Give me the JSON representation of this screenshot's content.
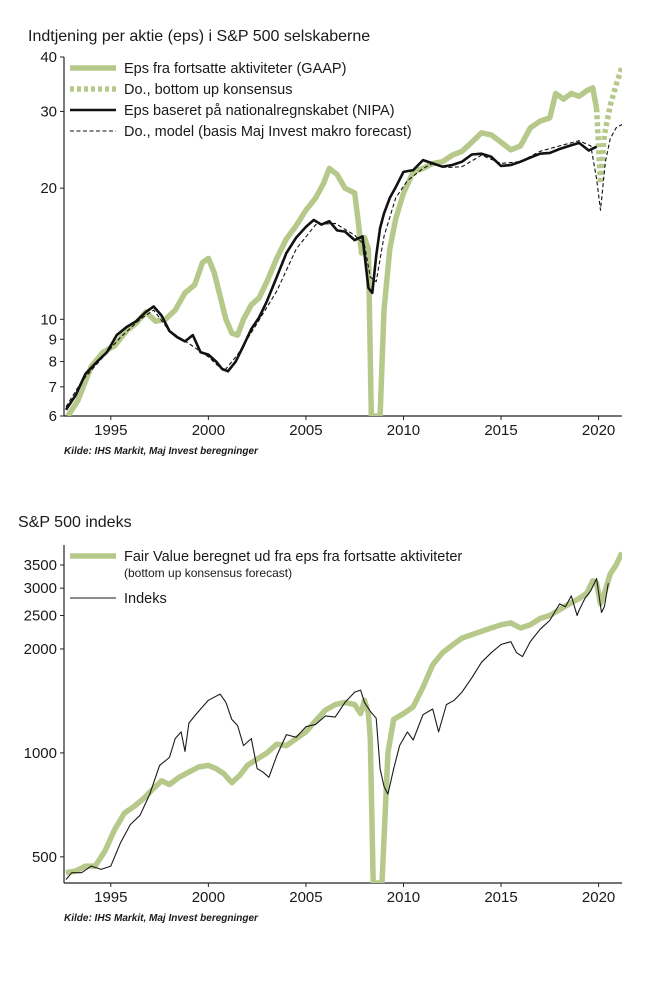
{
  "colors": {
    "gaap": "#b7c98a",
    "nipa": "#111111",
    "index": "#1a1a1a",
    "axis": "#222222"
  },
  "chart_data": [
    {
      "type": "line",
      "title": "Indtjening per aktie (eps) i S&P 500 selskaberne",
      "yscale": "log",
      "ylim": [
        6,
        40
      ],
      "xlim": [
        1992.6,
        2021.2
      ],
      "y_ticks": [
        6,
        7,
        8,
        9,
        10,
        20,
        30,
        40
      ],
      "y_tick_labels": [
        "6",
        "7",
        "8",
        "9",
        "10",
        "20",
        "30",
        "40"
      ],
      "x_ticks": [
        1995,
        2000,
        2005,
        2010,
        2015,
        2020
      ],
      "x_tick_labels": [
        "1995",
        "2000",
        "2005",
        "2010",
        "2015",
        "2020"
      ],
      "legend": "top-left",
      "source": "Kilde: IHS Markit, Maj Invest beregninger",
      "series": [
        {
          "name": "Eps fra fortsatte aktiviteter (GAAP)",
          "style": "thick-green",
          "x": [
            1992.8,
            1993.3,
            1994.0,
            1994.6,
            1995.2,
            1995.8,
            1996.3,
            1996.8,
            1997.3,
            1997.8,
            1998.3,
            1998.8,
            1999.3,
            1999.7,
            2000.0,
            2000.3,
            2000.6,
            2000.9,
            2001.2,
            2001.5,
            2001.8,
            2002.2,
            2002.6,
            2003.0,
            2003.5,
            2004.0,
            2004.5,
            2005.0,
            2005.5,
            2005.9,
            2006.2,
            2006.6,
            2007.0,
            2007.5,
            2007.7,
            2007.85,
            2008.0,
            2008.2,
            2008.35,
            2008.5,
            2008.6,
            2008.8,
            2009.0,
            2009.3,
            2009.6,
            2010.0,
            2010.5,
            2011.0,
            2011.5,
            2012.0,
            2012.5,
            2013.0,
            2013.5,
            2014.0,
            2014.5,
            2015.0,
            2015.5,
            2016.0,
            2016.5,
            2017.0,
            2017.5,
            2017.8,
            2018.2,
            2018.6,
            2019.0,
            2019.4,
            2019.7,
            2019.9
          ],
          "y": [
            6.0,
            6.5,
            7.8,
            8.4,
            8.7,
            9.4,
            9.8,
            10.4,
            9.9,
            10.0,
            10.5,
            11.5,
            12.0,
            13.5,
            13.8,
            12.8,
            11.3,
            10.0,
            9.3,
            9.2,
            10.0,
            10.8,
            11.2,
            12.2,
            13.8,
            15.3,
            16.4,
            17.8,
            19.0,
            20.5,
            22.2,
            21.5,
            20.0,
            19.5,
            16.5,
            14.2,
            15.4,
            14.5,
            6.0,
            6.0,
            6.0,
            6.0,
            10.5,
            14.5,
            17.0,
            19.5,
            21.8,
            22.2,
            22.8,
            23.0,
            23.8,
            24.3,
            25.5,
            26.8,
            26.5,
            25.5,
            24.5,
            25.0,
            27.5,
            28.5,
            29.0,
            33.0,
            32.0,
            33.0,
            32.5,
            33.5,
            34.0,
            30.5
          ]
        },
        {
          "name": "Do., bottom up konsensus",
          "style": "dotted-green",
          "x": [
            2019.9,
            2020.1,
            2020.3,
            2020.6,
            2020.9,
            2021.2
          ],
          "y": [
            30.5,
            20.5,
            26.5,
            31.0,
            34.5,
            38.0
          ]
        },
        {
          "name": "Eps baseret på nationalregnskabet (NIPA)",
          "style": "thick-black",
          "x": [
            1992.7,
            1993.2,
            1993.7,
            1994.3,
            1994.8,
            1995.3,
            1995.8,
            1996.3,
            1996.8,
            1997.2,
            1997.6,
            1998.0,
            1998.4,
            1998.8,
            1999.2,
            1999.6,
            2000.0,
            2000.4,
            2000.7,
            2001.0,
            2001.4,
            2001.8,
            2002.2,
            2002.6,
            2003.0,
            2003.5,
            2004.0,
            2004.5,
            2005.0,
            2005.4,
            2005.8,
            2006.2,
            2006.6,
            2007.0,
            2007.5,
            2007.9,
            2008.2,
            2008.4,
            2008.6,
            2008.8,
            2009.0,
            2009.3,
            2009.6,
            2010.0,
            2010.5,
            2011.0,
            2011.5,
            2012.0,
            2012.5,
            2013.0,
            2013.5,
            2014.0,
            2014.5,
            2015.0,
            2015.5,
            2016.0,
            2016.5,
            2017.0,
            2017.5,
            2018.0,
            2018.5,
            2019.0,
            2019.5,
            2019.9
          ],
          "y": [
            6.2,
            6.7,
            7.5,
            8.0,
            8.4,
            9.2,
            9.6,
            9.9,
            10.4,
            10.7,
            10.2,
            9.4,
            9.1,
            8.9,
            9.2,
            8.4,
            8.3,
            8.0,
            7.7,
            7.6,
            8.0,
            8.7,
            9.5,
            10.1,
            11.0,
            12.5,
            14.2,
            15.4,
            16.3,
            16.9,
            16.5,
            16.8,
            16.0,
            15.9,
            15.2,
            15.5,
            11.8,
            11.5,
            14.0,
            16.2,
            17.5,
            19.0,
            20.1,
            21.8,
            22.0,
            23.2,
            22.8,
            22.4,
            22.6,
            23.0,
            23.9,
            24.0,
            23.6,
            22.5,
            22.6,
            23.0,
            23.5,
            24.0,
            24.1,
            24.6,
            25.0,
            25.4,
            24.4,
            24.9
          ]
        },
        {
          "name": "Do., model (basis Maj Invest makro forecast)",
          "style": "dashed-black",
          "x": [
            1992.7,
            1993.5,
            1994.5,
            1995.5,
            1996.5,
            1997.2,
            1998.0,
            1999.0,
            2000.0,
            2000.8,
            2001.5,
            2002.5,
            2003.5,
            2004.5,
            2005.5,
            2006.5,
            2007.5,
            2008.0,
            2008.3,
            2008.6,
            2009.0,
            2009.6,
            2010.2,
            2011.0,
            2011.5,
            2012.2,
            2013.0,
            2014.0,
            2015.0,
            2016.0,
            2017.0,
            2018.0,
            2019.0,
            2019.6,
            2019.9,
            2020.1,
            2020.35,
            2020.6,
            2020.9,
            2021.2
          ],
          "y": [
            6.3,
            7.2,
            8.1,
            9.1,
            10.0,
            10.5,
            9.4,
            8.8,
            8.2,
            7.6,
            8.3,
            9.8,
            11.6,
            14.5,
            16.5,
            16.6,
            15.6,
            14.8,
            12.5,
            12.2,
            15.5,
            19.0,
            20.8,
            22.2,
            22.8,
            22.3,
            22.4,
            23.8,
            22.8,
            23.0,
            24.3,
            25.0,
            25.7,
            25.0,
            21.0,
            17.8,
            23.0,
            26.0,
            27.5,
            28.0
          ]
        }
      ]
    },
    {
      "type": "line",
      "title": "S&P 500 indeks",
      "yscale": "log",
      "ylim": [
        420,
        4000
      ],
      "xlim": [
        1992.6,
        2021.2
      ],
      "y_ticks": [
        500,
        1000,
        2000,
        2500,
        3000,
        3500
      ],
      "y_tick_labels": [
        "500",
        "1000",
        "2000",
        "2500",
        "3000",
        "3500"
      ],
      "x_ticks": [
        1995,
        2000,
        2005,
        2010,
        2015,
        2020
      ],
      "x_tick_labels": [
        "1995",
        "2000",
        "2005",
        "2010",
        "2015",
        "2020"
      ],
      "legend": "top-left",
      "source": "Kilde: IHS Markit, Maj Invest beregninger",
      "series": [
        {
          "name": "Fair Value beregnet ud fra eps fra fortsatte aktiviteter",
          "subtitle": "(bottom up konsensus forecast)",
          "style": "thick-green",
          "x": [
            1992.7,
            1993.2,
            1993.7,
            1994.2,
            1994.7,
            1995.2,
            1995.7,
            1996.2,
            1996.7,
            1997.2,
            1997.6,
            1998.0,
            1998.5,
            1999.0,
            1999.5,
            2000.0,
            2000.4,
            2000.8,
            2001.2,
            2001.6,
            2002.0,
            2002.5,
            2003.0,
            2003.5,
            2004.0,
            2004.5,
            2005.0,
            2005.5,
            2006.0,
            2006.5,
            2007.0,
            2007.5,
            2007.8,
            2008.0,
            2008.2,
            2008.3,
            2008.45,
            2008.6,
            2008.7,
            2008.9,
            2009.2,
            2009.5,
            2010.0,
            2010.5,
            2011.0,
            2011.5,
            2012.0,
            2012.5,
            2013.0,
            2013.5,
            2014.0,
            2014.5,
            2015.0,
            2015.5,
            2016.0,
            2016.5,
            2017.0,
            2017.5,
            2018.0,
            2018.5,
            2019.0,
            2019.4,
            2019.7,
            2019.9,
            2020.1,
            2020.3,
            2020.6,
            2020.9,
            2021.2
          ],
          "y": [
            450,
            455,
            470,
            470,
            520,
            600,
            670,
            700,
            740,
            790,
            830,
            810,
            850,
            880,
            910,
            920,
            900,
            870,
            820,
            860,
            920,
            960,
            1000,
            1060,
            1050,
            1100,
            1150,
            1240,
            1330,
            1380,
            1400,
            1380,
            1300,
            1420,
            1300,
            1100,
            420,
            420,
            420,
            420,
            1000,
            1250,
            1300,
            1360,
            1550,
            1800,
            1950,
            2050,
            2150,
            2200,
            2250,
            2300,
            2350,
            2380,
            2300,
            2350,
            2450,
            2500,
            2600,
            2700,
            2800,
            2900,
            3150,
            3100,
            2700,
            2900,
            3300,
            3500,
            3800
          ]
        },
        {
          "name": "Indeks",
          "style": "thin-black",
          "x": [
            1992.7,
            1993.0,
            1993.5,
            1994.0,
            1994.5,
            1995.0,
            1995.5,
            1996.0,
            1996.5,
            1997.0,
            1997.5,
            1998.0,
            1998.3,
            1998.6,
            1998.8,
            1999.0,
            1999.3,
            1999.6,
            2000.0,
            2000.3,
            2000.6,
            2000.9,
            2001.2,
            2001.5,
            2001.8,
            2002.2,
            2002.5,
            2002.8,
            2003.1,
            2003.5,
            2004.0,
            2004.5,
            2005.0,
            2005.5,
            2006.0,
            2006.5,
            2007.0,
            2007.5,
            2007.8,
            2008.0,
            2008.3,
            2008.6,
            2008.8,
            2009.0,
            2009.2,
            2009.5,
            2009.8,
            2010.2,
            2010.5,
            2011.0,
            2011.5,
            2011.8,
            2012.2,
            2012.6,
            2013.0,
            2013.5,
            2014.0,
            2014.5,
            2015.0,
            2015.5,
            2015.8,
            2016.1,
            2016.5,
            2017.0,
            2017.5,
            2018.0,
            2018.3,
            2018.6,
            2018.9,
            2019.0,
            2019.3,
            2019.6,
            2019.9,
            2020.15,
            2020.3,
            2020.5
          ],
          "y": [
            430,
            450,
            450,
            470,
            460,
            470,
            550,
            620,
            660,
            760,
            920,
            970,
            1100,
            1150,
            1010,
            1220,
            1280,
            1340,
            1420,
            1450,
            1480,
            1400,
            1250,
            1200,
            1050,
            1100,
            900,
            880,
            850,
            980,
            1130,
            1110,
            1190,
            1210,
            1280,
            1270,
            1400,
            1500,
            1520,
            1400,
            1320,
            1260,
            900,
            800,
            760,
            900,
            1050,
            1150,
            1090,
            1290,
            1340,
            1150,
            1380,
            1420,
            1500,
            1650,
            1830,
            1950,
            2060,
            2100,
            1950,
            1900,
            2100,
            2280,
            2420,
            2700,
            2650,
            2850,
            2500,
            2590,
            2800,
            2950,
            3200,
            2550,
            2650,
            3100
          ]
        }
      ]
    }
  ]
}
